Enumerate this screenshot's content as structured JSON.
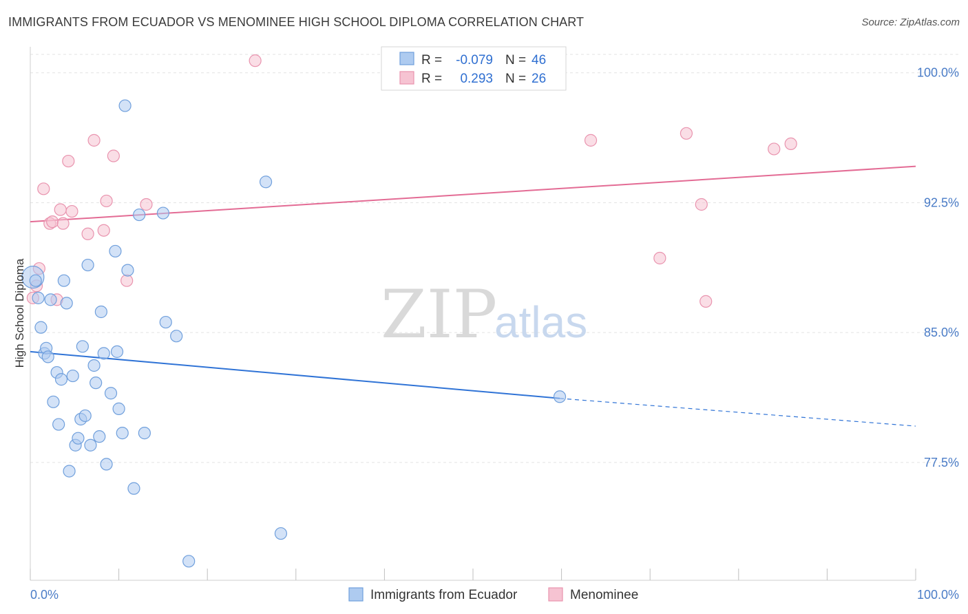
{
  "title": "IMMIGRANTS FROM ECUADOR VS MENOMINEE HIGH SCHOOL DIPLOMA CORRELATION CHART",
  "source": "Source: ZipAtlas.com",
  "watermark": {
    "zip": "ZIP",
    "atlas": "atlas"
  },
  "colors": {
    "blue_fill": "#aecbf0",
    "blue_stroke": "#6f9fdc",
    "blue_line": "#2f73d6",
    "pink_fill": "#f6c3d2",
    "pink_stroke": "#e993ae",
    "pink_line": "#e36b94",
    "grid": "#e3e3e3",
    "tick_text": "#4a7cc7"
  },
  "legend_top": {
    "rows": [
      {
        "r_label": "R =",
        "r_value": "-0.079",
        "n_label": "N =",
        "n_value": "46"
      },
      {
        "r_label": "R =",
        "r_value": "0.293",
        "n_label": "N =",
        "n_value": "26"
      }
    ]
  },
  "legend_bottom": [
    "Immigrants from Ecuador",
    "Menominee"
  ],
  "chart_data": {
    "type": "scatter",
    "xlabel": "",
    "ylabel": "High School Diploma",
    "xlim": [
      0,
      100
    ],
    "ylim": [
      70.7,
      101.5
    ],
    "x_tick_labels": [
      {
        "value": 0,
        "label": "0.0%"
      },
      {
        "value": 100,
        "label": "100.0%"
      }
    ],
    "y_ticks": [
      {
        "value": 100.0,
        "label": "100.0%"
      },
      {
        "value": 92.5,
        "label": "92.5%"
      },
      {
        "value": 85.0,
        "label": "85.0%"
      },
      {
        "value": 77.5,
        "label": "77.5%"
      }
    ],
    "grid": true,
    "series": [
      {
        "name": "Immigrants from Ecuador",
        "color": "#aecbf0",
        "points": [
          {
            "x": 0.3,
            "y": 88.2,
            "big": true
          },
          {
            "x": 0.6,
            "y": 88.0
          },
          {
            "x": 0.9,
            "y": 87.0
          },
          {
            "x": 1.2,
            "y": 85.3
          },
          {
            "x": 1.6,
            "y": 83.8
          },
          {
            "x": 1.8,
            "y": 84.1
          },
          {
            "x": 2.0,
            "y": 83.6
          },
          {
            "x": 2.3,
            "y": 86.9
          },
          {
            "x": 2.6,
            "y": 81.0
          },
          {
            "x": 3.0,
            "y": 82.7
          },
          {
            "x": 3.2,
            "y": 79.7
          },
          {
            "x": 3.5,
            "y": 82.3
          },
          {
            "x": 3.8,
            "y": 88.0
          },
          {
            "x": 4.1,
            "y": 86.7
          },
          {
            "x": 4.4,
            "y": 77.0
          },
          {
            "x": 4.8,
            "y": 82.5
          },
          {
            "x": 5.1,
            "y": 78.5
          },
          {
            "x": 5.4,
            "y": 78.9
          },
          {
            "x": 5.7,
            "y": 80.0
          },
          {
            "x": 5.9,
            "y": 84.2
          },
          {
            "x": 6.2,
            "y": 80.2
          },
          {
            "x": 6.5,
            "y": 88.9
          },
          {
            "x": 6.8,
            "y": 78.5
          },
          {
            "x": 7.2,
            "y": 83.1
          },
          {
            "x": 7.4,
            "y": 82.1
          },
          {
            "x": 7.8,
            "y": 79.0
          },
          {
            "x": 8.0,
            "y": 86.2
          },
          {
            "x": 8.3,
            "y": 83.8
          },
          {
            "x": 8.6,
            "y": 77.4
          },
          {
            "x": 9.1,
            "y": 81.5
          },
          {
            "x": 9.6,
            "y": 89.7
          },
          {
            "x": 9.8,
            "y": 83.9
          },
          {
            "x": 10.0,
            "y": 80.6
          },
          {
            "x": 10.4,
            "y": 79.2
          },
          {
            "x": 10.7,
            "y": 98.1
          },
          {
            "x": 11.0,
            "y": 88.6
          },
          {
            "x": 11.7,
            "y": 76.0
          },
          {
            "x": 12.3,
            "y": 91.8
          },
          {
            "x": 12.9,
            "y": 79.2
          },
          {
            "x": 15.0,
            "y": 91.9
          },
          {
            "x": 15.3,
            "y": 85.6
          },
          {
            "x": 16.5,
            "y": 84.8
          },
          {
            "x": 17.9,
            "y": 71.8
          },
          {
            "x": 26.6,
            "y": 93.7
          },
          {
            "x": 28.3,
            "y": 73.4
          },
          {
            "x": 59.8,
            "y": 81.3
          }
        ],
        "trend": {
          "x0": 0,
          "y0": 83.9,
          "x1": 59.8,
          "y1": 81.2,
          "x_dash_end": 100,
          "y_dash_end": 79.6
        }
      },
      {
        "name": "Menominee",
        "color": "#f6c3d2",
        "points": [
          {
            "x": 0.3,
            "y": 87.0
          },
          {
            "x": 0.7,
            "y": 87.7
          },
          {
            "x": 1.0,
            "y": 88.7
          },
          {
            "x": 1.5,
            "y": 93.3
          },
          {
            "x": 2.2,
            "y": 91.3
          },
          {
            "x": 2.5,
            "y": 91.4
          },
          {
            "x": 3.0,
            "y": 86.9
          },
          {
            "x": 3.4,
            "y": 92.1
          },
          {
            "x": 3.7,
            "y": 91.3
          },
          {
            "x": 4.3,
            "y": 94.9
          },
          {
            "x": 4.7,
            "y": 92.0
          },
          {
            "x": 6.5,
            "y": 90.7
          },
          {
            "x": 7.2,
            "y": 96.1
          },
          {
            "x": 8.3,
            "y": 90.9
          },
          {
            "x": 8.6,
            "y": 92.6
          },
          {
            "x": 9.4,
            "y": 95.2
          },
          {
            "x": 10.9,
            "y": 88.0
          },
          {
            "x": 13.1,
            "y": 92.4
          },
          {
            "x": 25.4,
            "y": 100.7
          },
          {
            "x": 63.3,
            "y": 96.1
          },
          {
            "x": 71.1,
            "y": 89.3
          },
          {
            "x": 74.1,
            "y": 96.5
          },
          {
            "x": 75.8,
            "y": 92.4
          },
          {
            "x": 76.3,
            "y": 86.8
          },
          {
            "x": 84.0,
            "y": 95.6
          },
          {
            "x": 85.9,
            "y": 95.9
          }
        ],
        "trend": {
          "x0": 0,
          "y0": 91.4,
          "x1": 100,
          "y1": 94.6
        }
      }
    ]
  }
}
